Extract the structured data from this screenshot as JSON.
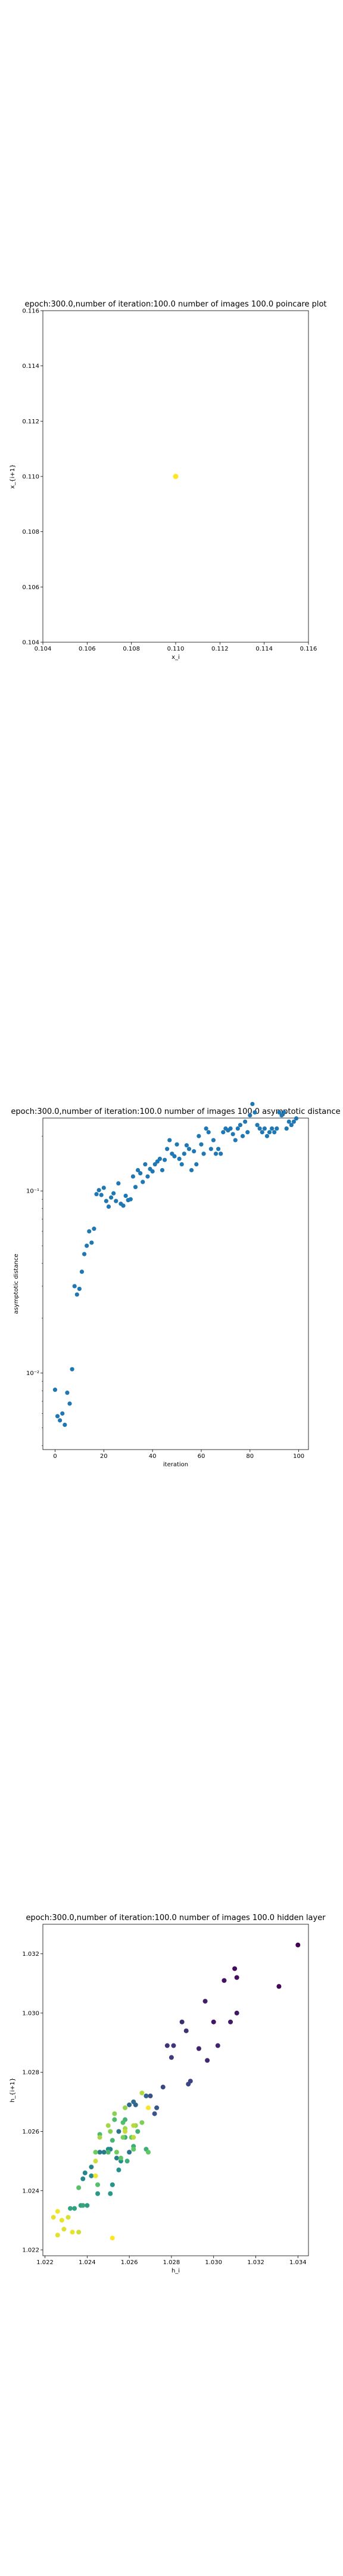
{
  "chart_data": [
    {
      "type": "scatter",
      "title": "epoch:300.0,number of iteration:100.0 number of images 100.0 poincare plot",
      "xlabel": "x_i",
      "ylabel": "x_{i+1}",
      "xlim": [
        0.104,
        0.116
      ],
      "ylim": [
        0.104,
        0.116
      ],
      "xticks": [
        "0.104",
        "0.106",
        "0.108",
        "0.110",
        "0.112",
        "0.114",
        "0.116"
      ],
      "yticks": [
        "0.104",
        "0.106",
        "0.108",
        "0.110",
        "0.112",
        "0.114",
        "0.116"
      ],
      "grid": false,
      "points": [
        {
          "x": 0.11,
          "y": 0.11
        }
      ],
      "colors": {
        "point": "#fde725"
      }
    },
    {
      "type": "scatter",
      "title": "epoch:300.0,number of iteration:100.0  number of images 100.0 asymptotic distance",
      "xlabel": "iteration",
      "ylabel": "asymptotic distance",
      "xlim": [
        -5,
        104
      ],
      "yscale": "log",
      "ylog_range": [
        -2.42,
        -0.6
      ],
      "xticks": [
        "0",
        "20",
        "40",
        "60",
        "80",
        "100"
      ],
      "yticks": [
        {
          "label": "10⁻¹",
          "value": 0.1
        },
        {
          "label": "10⁻²",
          "value": 0.01
        }
      ],
      "grid": false,
      "colors": {
        "point": "#1f77b4"
      },
      "x": [
        0,
        1,
        2,
        3,
        4,
        5,
        6,
        7,
        8,
        9,
        10,
        11,
        12,
        13,
        14,
        15,
        16,
        17,
        18,
        19,
        20,
        21,
        22,
        23,
        24,
        25,
        26,
        27,
        28,
        29,
        30,
        31,
        32,
        33,
        34,
        35,
        36,
        37,
        38,
        39,
        40,
        41,
        42,
        43,
        44,
        45,
        46,
        47,
        48,
        49,
        50,
        51,
        52,
        53,
        54,
        55,
        56,
        57,
        58,
        59,
        60,
        61,
        62,
        63,
        64,
        65,
        66,
        67,
        68,
        69,
        70,
        71,
        72,
        73,
        74,
        75,
        76,
        77,
        78,
        79,
        80,
        81,
        82,
        83,
        84,
        85,
        86,
        87,
        88,
        89,
        90,
        91,
        92,
        93,
        94,
        95,
        96,
        97,
        98,
        99
      ],
      "y": [
        0.0081,
        0.0058,
        0.0055,
        0.006,
        0.0052,
        0.0078,
        0.0068,
        0.0105,
        0.03,
        0.027,
        0.029,
        0.036,
        0.045,
        0.05,
        0.06,
        0.052,
        0.062,
        0.096,
        0.101,
        0.095,
        0.104,
        0.088,
        0.082,
        0.092,
        0.097,
        0.088,
        0.11,
        0.085,
        0.083,
        0.094,
        0.089,
        0.09,
        0.12,
        0.105,
        0.13,
        0.125,
        0.112,
        0.14,
        0.12,
        0.132,
        0.128,
        0.14,
        0.145,
        0.15,
        0.13,
        0.148,
        0.17,
        0.19,
        0.16,
        0.155,
        0.18,
        0.15,
        0.14,
        0.16,
        0.178,
        0.17,
        0.13,
        0.165,
        0.14,
        0.2,
        0.18,
        0.16,
        0.22,
        0.21,
        0.17,
        0.19,
        0.16,
        0.17,
        0.16,
        0.21,
        0.22,
        0.215,
        0.22,
        0.205,
        0.19,
        0.22,
        0.23,
        0.2,
        0.24,
        0.21,
        0.26,
        0.3,
        0.27,
        0.23,
        0.22,
        0.21,
        0.22,
        0.2,
        0.21,
        0.22,
        0.21,
        0.22,
        0.27,
        0.26,
        0.27,
        0.22,
        0.24,
        0.23,
        0.24,
        0.25
      ]
    },
    {
      "type": "scatter",
      "title": "epoch:300.0,number of iteration:100.0  number of images 100.0 hidden layer",
      "xlabel": "h_i",
      "ylabel": "h_{i+1}",
      "xlim": [
        1.0219,
        1.0345
      ],
      "ylim": [
        1.0218,
        1.033
      ],
      "xticks": [
        "1.022",
        "1.024",
        "1.026",
        "1.028",
        "1.030",
        "1.032",
        "1.034"
      ],
      "yticks": [
        "1.022",
        "1.024",
        "1.026",
        "1.028",
        "1.030",
        "1.032"
      ],
      "grid": false,
      "colormap": "viridis (dark = later iterations)",
      "points": [
        {
          "x": 1.034,
          "y": 1.0323,
          "c": 0.0
        },
        {
          "x": 1.0331,
          "y": 1.0309,
          "c": 0.02
        },
        {
          "x": 1.031,
          "y": 1.0315,
          "c": 0.03
        },
        {
          "x": 1.0311,
          "y": 1.0312,
          "c": 0.04
        },
        {
          "x": 1.0305,
          "y": 1.0311,
          "c": 0.05
        },
        {
          "x": 1.03,
          "y": 1.0297,
          "c": 0.06
        },
        {
          "x": 1.0311,
          "y": 1.03,
          "c": 0.07
        },
        {
          "x": 1.0308,
          "y": 1.0297,
          "c": 0.08
        },
        {
          "x": 1.0296,
          "y": 1.0304,
          "c": 0.09
        },
        {
          "x": 1.0293,
          "y": 1.0288,
          "c": 0.1
        },
        {
          "x": 1.0302,
          "y": 1.0289,
          "c": 0.11
        },
        {
          "x": 1.0297,
          "y": 1.0284,
          "c": 0.12
        },
        {
          "x": 1.0285,
          "y": 1.0297,
          "c": 0.14
        },
        {
          "x": 1.0287,
          "y": 1.0294,
          "c": 0.15
        },
        {
          "x": 1.0278,
          "y": 1.0289,
          "c": 0.16
        },
        {
          "x": 1.0281,
          "y": 1.0289,
          "c": 0.17
        },
        {
          "x": 1.028,
          "y": 1.0285,
          "c": 0.18
        },
        {
          "x": 1.0289,
          "y": 1.0277,
          "c": 0.2
        },
        {
          "x": 1.0288,
          "y": 1.0276,
          "c": 0.21
        },
        {
          "x": 1.0276,
          "y": 1.0275,
          "c": 0.22
        },
        {
          "x": 1.027,
          "y": 1.0272,
          "c": 0.24
        },
        {
          "x": 1.0272,
          "y": 1.0266,
          "c": 0.26
        },
        {
          "x": 1.0273,
          "y": 1.0268,
          "c": 0.27
        },
        {
          "x": 1.0268,
          "y": 1.0272,
          "c": 0.3
        },
        {
          "x": 1.0263,
          "y": 1.0269,
          "c": 0.32
        },
        {
          "x": 1.026,
          "y": 1.0269,
          "c": 0.34
        },
        {
          "x": 1.0262,
          "y": 1.027,
          "c": 0.35
        },
        {
          "x": 1.0255,
          "y": 1.026,
          "c": 0.37
        },
        {
          "x": 1.026,
          "y": 1.0253,
          "c": 0.38
        },
        {
          "x": 1.0246,
          "y": 1.0253,
          "c": 0.4
        },
        {
          "x": 1.0248,
          "y": 1.0253,
          "c": 0.41
        },
        {
          "x": 1.0254,
          "y": 1.0251,
          "c": 0.43
        },
        {
          "x": 1.0251,
          "y": 1.0254,
          "c": 0.44
        },
        {
          "x": 1.0242,
          "y": 1.0248,
          "c": 0.45
        },
        {
          "x": 1.0239,
          "y": 1.0246,
          "c": 0.46
        },
        {
          "x": 1.0238,
          "y": 1.0244,
          "c": 0.47
        },
        {
          "x": 1.0242,
          "y": 1.0245,
          "c": 0.48
        },
        {
          "x": 1.025,
          "y": 1.0254,
          "c": 0.49
        },
        {
          "x": 1.0255,
          "y": 1.0247,
          "c": 0.5
        },
        {
          "x": 1.0256,
          "y": 1.025,
          "c": 0.51
        },
        {
          "x": 1.0252,
          "y": 1.0242,
          "c": 0.52
        },
        {
          "x": 1.0251,
          "y": 1.0239,
          "c": 0.53
        },
        {
          "x": 1.0245,
          "y": 1.0239,
          "c": 0.54
        },
        {
          "x": 1.024,
          "y": 1.0235,
          "c": 0.55
        },
        {
          "x": 1.0237,
          "y": 1.0235,
          "c": 0.56
        },
        {
          "x": 1.0234,
          "y": 1.0234,
          "c": 0.57
        },
        {
          "x": 1.0232,
          "y": 1.0234,
          "c": 0.58
        },
        {
          "x": 1.0238,
          "y": 1.0235,
          "c": 0.59
        },
        {
          "x": 1.0258,
          "y": 1.0258,
          "c": 0.6
        },
        {
          "x": 1.0259,
          "y": 1.025,
          "c": 0.61
        },
        {
          "x": 1.0262,
          "y": 1.0255,
          "c": 0.62
        },
        {
          "x": 1.0268,
          "y": 1.0254,
          "c": 0.63
        },
        {
          "x": 1.0264,
          "y": 1.026,
          "c": 0.64
        },
        {
          "x": 1.0258,
          "y": 1.0264,
          "c": 0.65
        },
        {
          "x": 1.0252,
          "y": 1.0257,
          "c": 0.66
        },
        {
          "x": 1.025,
          "y": 1.0253,
          "c": 0.67
        },
        {
          "x": 1.0246,
          "y": 1.0259,
          "c": 0.68
        },
        {
          "x": 1.0253,
          "y": 1.0264,
          "c": 0.69
        },
        {
          "x": 1.0257,
          "y": 1.0263,
          "c": 0.7
        },
        {
          "x": 1.0245,
          "y": 1.0242,
          "c": 0.71
        },
        {
          "x": 1.0236,
          "y": 1.0241,
          "c": 0.72
        },
        {
          "x": 1.0256,
          "y": 1.0251,
          "c": 0.73
        },
        {
          "x": 1.0262,
          "y": 1.0254,
          "c": 0.74
        },
        {
          "x": 1.0269,
          "y": 1.0253,
          "c": 0.75
        },
        {
          "x": 1.0261,
          "y": 1.0258,
          "c": 0.76
        },
        {
          "x": 1.0244,
          "y": 1.0253,
          "c": 0.77
        },
        {
          "x": 1.0254,
          "y": 1.0253,
          "c": 0.78
        },
        {
          "x": 1.0257,
          "y": 1.0258,
          "c": 0.79
        },
        {
          "x": 1.0266,
          "y": 1.0263,
          "c": 0.8
        },
        {
          "x": 1.0251,
          "y": 1.026,
          "c": 0.81
        },
        {
          "x": 1.0253,
          "y": 1.0266,
          "c": 0.82
        },
        {
          "x": 1.0258,
          "y": 1.0268,
          "c": 0.83
        },
        {
          "x": 1.0263,
          "y": 1.0262,
          "c": 0.84
        },
        {
          "x": 1.0258,
          "y": 1.0261,
          "c": 0.85
        },
        {
          "x": 1.025,
          "y": 1.0262,
          "c": 0.86
        },
        {
          "x": 1.0246,
          "y": 1.0258,
          "c": 0.87
        },
        {
          "x": 1.0266,
          "y": 1.0273,
          "c": 0.88
        },
        {
          "x": 1.0262,
          "y": 1.0262,
          "c": 0.89
        },
        {
          "x": 1.0262,
          "y": 1.0258,
          "c": 0.9
        },
        {
          "x": 1.0258,
          "y": 1.026,
          "c": 0.91
        },
        {
          "x": 1.0244,
          "y": 1.025,
          "c": 0.92
        },
        {
          "x": 1.0236,
          "y": 1.0226,
          "c": 0.93
        },
        {
          "x": 1.0231,
          "y": 1.0231,
          "c": 0.94
        },
        {
          "x": 1.0229,
          "y": 1.0227,
          "c": 0.95
        },
        {
          "x": 1.0226,
          "y": 1.0225,
          "c": 0.96
        },
        {
          "x": 1.0233,
          "y": 1.0226,
          "c": 0.97
        },
        {
          "x": 1.0244,
          "y": 1.0245,
          "c": 0.98
        },
        {
          "x": 1.0269,
          "y": 1.0268,
          "c": 0.99
        },
        {
          "x": 1.0252,
          "y": 1.0224,
          "c": 1.0
        },
        {
          "x": 1.0226,
          "y": 1.0233,
          "c": 0.98
        },
        {
          "x": 1.0224,
          "y": 1.0231,
          "c": 0.96
        },
        {
          "x": 1.0228,
          "y": 1.023,
          "c": 0.97
        }
      ]
    }
  ]
}
